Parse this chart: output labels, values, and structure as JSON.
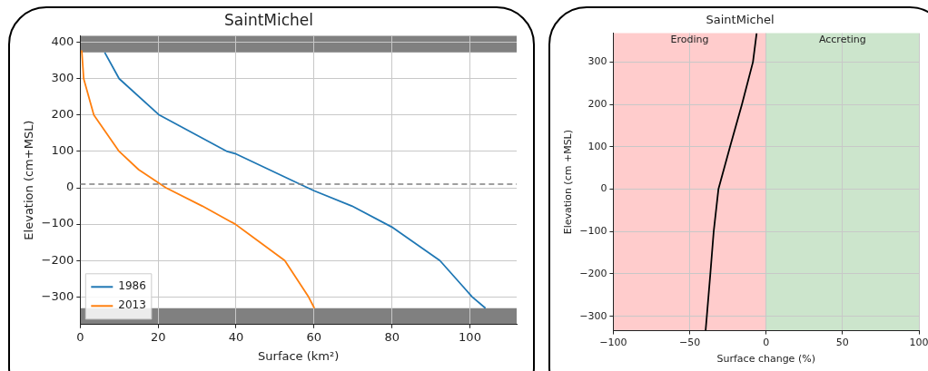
{
  "chart_data": [
    {
      "type": "line",
      "title": "SaintMichel",
      "xlabel": "Surface (km²)",
      "ylabel": "Elevation (cm+MSL)",
      "xlim": [
        0,
        112
      ],
      "xticks": [
        0,
        20,
        40,
        60,
        80,
        100
      ],
      "ylim": [
        -376,
        418
      ],
      "yticks": [
        -300,
        -200,
        -100,
        0,
        100,
        200,
        300,
        400
      ],
      "series": [
        {
          "name": "1986",
          "color": "#1f77b4",
          "x": [
            6.3,
            10,
            20.3,
            37.7,
            40,
            56,
            60,
            69.7,
            80,
            92.3,
            100.6,
            104
          ],
          "values": [
            372,
            300,
            200,
            100,
            93,
            12,
            -8,
            -50,
            -108,
            -200,
            -300,
            -331
          ]
        },
        {
          "name": "2013",
          "color": "#ff7f0e",
          "x": [
            0.4,
            0.9,
            3.5,
            10,
            15,
            22,
            31.3,
            39.8,
            52.5,
            58.6,
            60.1
          ],
          "values": [
            378,
            300,
            200,
            100,
            50,
            0,
            -50,
            -100,
            -200,
            -300,
            -331
          ]
        }
      ],
      "bands": [
        {
          "axis": "y",
          "from": 372,
          "to": 418,
          "color": "#808080"
        },
        {
          "axis": "y",
          "from": -376,
          "to": -331,
          "color": "#808080"
        }
      ],
      "ref_lines": [
        {
          "axis": "y",
          "value": 10,
          "color": "#808080",
          "line_style": "dashed"
        }
      ],
      "grid": true,
      "legend": "bottom left"
    },
    {
      "type": "line",
      "title": "SaintMichel",
      "xlabel": "Surface change (%)",
      "ylabel": "Elevation (cm +MSL)",
      "xlim": [
        -100,
        100
      ],
      "xticks": [
        -100,
        -50,
        0,
        50,
        100
      ],
      "ylim": [
        -334,
        368
      ],
      "yticks": [
        -300,
        -200,
        -100,
        0,
        100,
        200,
        300
      ],
      "series": [
        {
          "color": "#000000",
          "x": [
            -6.2,
            -8.6,
            -15.8,
            -23.6,
            -31.2,
            -34.3,
            -36.5,
            -38.8,
            -39.6
          ],
          "values": [
            368,
            300,
            200,
            100,
            0,
            -100,
            -200,
            -300,
            -334
          ]
        }
      ],
      "bands": [
        {
          "axis": "x",
          "from": -100,
          "to": 0,
          "label": "Eroding",
          "color": "#ffcccc"
        },
        {
          "axis": "x",
          "from": 0,
          "to": 100,
          "label": "Accreting",
          "color": "#cce5cc"
        }
      ],
      "grid": true
    }
  ]
}
